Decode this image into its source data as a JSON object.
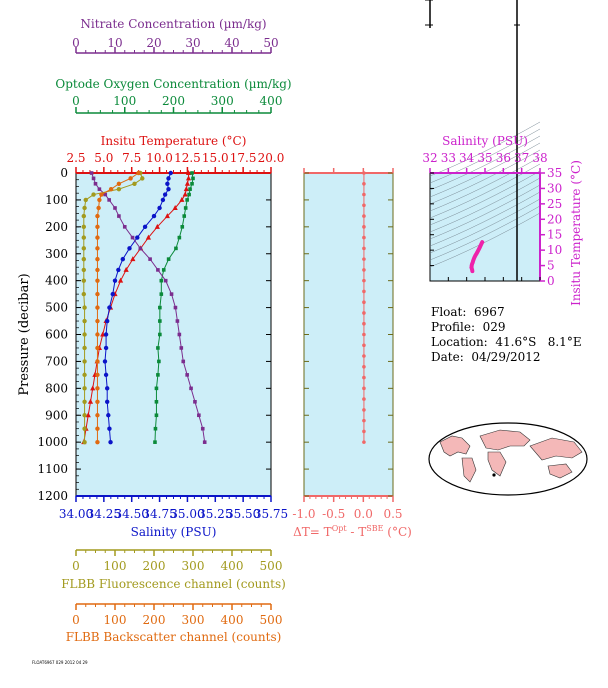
{
  "float_info": {
    "float": "Float:  6967",
    "profile": "Profile:  029",
    "location": "Location:  41.6°S   8.1°E",
    "date": "Date:  04/29/2012"
  },
  "footer_text": "FLOAT6967 029 2012 04 29",
  "colors": {
    "nitrate": "#7b2d8e",
    "oxygen": "#0b8a3a",
    "temperature": "#dd1111",
    "salinity": "#0b14c8",
    "fluorescence": "#a29a1e",
    "backscatter": "#e06a10",
    "delta_t": "#f06868",
    "plot_bg": "#cdeef8",
    "ts_bg": "#cdeef8",
    "ts_marker": "#ee22aa",
    "magenta_axis": "#cc22cc"
  },
  "chart_data": [
    {
      "type": "line",
      "id": "main_profile",
      "ylabel": "Pressure (decibar)",
      "ylim": [
        1200,
        0
      ],
      "y_ticks": [
        "0",
        "100",
        "200",
        "300",
        "400",
        "500",
        "600",
        "700",
        "800",
        "900",
        "1000",
        "1100",
        "1200"
      ],
      "axes": {
        "temperature": {
          "label": "Insitu Temperature (°C)",
          "range": [
            2.5,
            20.0
          ],
          "ticks": [
            "2.5",
            "5.0",
            "7.5",
            "10.0",
            "12.5",
            "15.0",
            "17.5",
            "20.0"
          ]
        },
        "oxygen": {
          "label": "Optode Oxygen Concentration (µm/kg)",
          "range": [
            0,
            400
          ],
          "ticks": [
            "0",
            "100",
            "200",
            "300",
            "400"
          ]
        },
        "nitrate": {
          "label": "Nitrate Concentration (µm/kg)",
          "range": [
            0,
            50
          ],
          "ticks": [
            "0",
            "10",
            "20",
            "30",
            "40",
            "50"
          ]
        },
        "salinity": {
          "label": "Salinity (PSU)",
          "range": [
            34.0,
            35.75
          ],
          "ticks": [
            "34.00",
            "34.25",
            "34.50",
            "34.75",
            "35.00",
            "35.25",
            "35.50",
            "35.75"
          ]
        },
        "fluorescence": {
          "label": "FLBB Fluorescence channel (counts)",
          "range": [
            0,
            500
          ],
          "ticks": [
            "0",
            "100",
            "200",
            "300",
            "400",
            "500"
          ]
        },
        "backscatter": {
          "label": "FLBB Backscatter channel (counts)",
          "range": [
            0,
            500
          ],
          "ticks": [
            "0",
            "100",
            "200",
            "300",
            "400",
            "500"
          ]
        }
      },
      "series": [
        {
          "key": "temperature",
          "pressure": [
            0,
            20,
            40,
            60,
            80,
            100,
            130,
            160,
            200,
            240,
            280,
            320,
            360,
            400,
            450,
            500,
            550,
            600,
            650,
            700,
            750,
            800,
            850,
            900,
            950,
            1000
          ],
          "values": [
            12.6,
            12.6,
            12.5,
            12.4,
            12.3,
            12.0,
            11.4,
            10.7,
            9.8,
            9.0,
            8.3,
            7.6,
            7.0,
            6.5,
            6.0,
            5.6,
            5.2,
            4.9,
            4.6,
            4.4,
            4.2,
            4.0,
            3.8,
            3.6,
            3.4,
            3.2
          ]
        },
        {
          "key": "salinity",
          "pressure": [
            0,
            20,
            40,
            60,
            80,
            100,
            130,
            160,
            200,
            240,
            280,
            320,
            360,
            400,
            450,
            500,
            550,
            600,
            650,
            700,
            750,
            800,
            850,
            900,
            950,
            1000
          ],
          "values": [
            34.85,
            34.83,
            34.82,
            34.83,
            34.8,
            34.78,
            34.75,
            34.7,
            34.62,
            34.55,
            34.48,
            34.42,
            34.38,
            34.35,
            34.33,
            34.3,
            34.28,
            34.27,
            34.27,
            34.26,
            34.27,
            34.28,
            34.28,
            34.29,
            34.3,
            34.31
          ]
        },
        {
          "key": "oxygen",
          "pressure": [
            0,
            20,
            40,
            60,
            80,
            100,
            130,
            160,
            200,
            240,
            280,
            320,
            360,
            400,
            450,
            500,
            550,
            600,
            650,
            700,
            750,
            800,
            850,
            900,
            950,
            1000
          ],
          "values": [
            238,
            240,
            238,
            234,
            232,
            228,
            225,
            222,
            218,
            212,
            205,
            190,
            180,
            175,
            175,
            172,
            172,
            172,
            168,
            170,
            168,
            165,
            165,
            165,
            163,
            162
          ]
        },
        {
          "key": "nitrate",
          "pressure": [
            0,
            20,
            40,
            60,
            80,
            100,
            130,
            160,
            200,
            240,
            280,
            320,
            360,
            400,
            450,
            500,
            550,
            600,
            650,
            700,
            750,
            800,
            850,
            900,
            950,
            1000
          ],
          "values": [
            4.0,
            4.5,
            5.0,
            6.0,
            7.5,
            8.5,
            10.0,
            11.0,
            12.5,
            14.5,
            16.5,
            19.0,
            21.0,
            23.0,
            24.5,
            25.5,
            26.0,
            26.5,
            27.0,
            27.5,
            28.5,
            29.5,
            30.5,
            31.5,
            32.5,
            33.0
          ]
        },
        {
          "key": "fluorescence",
          "pressure": [
            0,
            20,
            40,
            60,
            80,
            100,
            130,
            160,
            200,
            240,
            280,
            320,
            360,
            400,
            450,
            500,
            550,
            600,
            650,
            700,
            750,
            800,
            850,
            900,
            950,
            1000
          ],
          "values": [
            165,
            170,
            150,
            110,
            45,
            25,
            22,
            20,
            20,
            20,
            20,
            20,
            20,
            20,
            20,
            22,
            22,
            22,
            22,
            22,
            22,
            22,
            22,
            22,
            22,
            22
          ]
        },
        {
          "key": "backscatter",
          "pressure": [
            0,
            20,
            40,
            60,
            80,
            100,
            130,
            160,
            200,
            240,
            280,
            320,
            360,
            400,
            450,
            500,
            550,
            600,
            650,
            700,
            750,
            800,
            850,
            900,
            950,
            1000
          ],
          "values": [
            160,
            140,
            110,
            90,
            65,
            60,
            58,
            55,
            55,
            55,
            55,
            55,
            55,
            55,
            55,
            55,
            55,
            55,
            55,
            55,
            55,
            55,
            55,
            55,
            55,
            55
          ]
        }
      ]
    },
    {
      "type": "line",
      "id": "delta_t",
      "xlabel_main": "ΔT= T",
      "xlabel_sup1": "Opt",
      "xlabel_mid": " - T",
      "xlabel_sup2": "SBE",
      "xlabel_end": " (°C)",
      "xlim": [
        -1.0,
        0.5
      ],
      "x_ticks": [
        "-1.0",
        "-0.5",
        "0.0",
        "0.5"
      ],
      "pressure": [
        0,
        40,
        80,
        120,
        160,
        200,
        240,
        280,
        320,
        360,
        400,
        440,
        480,
        520,
        560,
        600,
        640,
        680,
        720,
        760,
        800,
        840,
        880,
        920,
        960,
        1000
      ],
      "values": [
        0.01,
        0.01,
        0.01,
        0.01,
        0.01,
        0.01,
        0.01,
        0.01,
        0.01,
        0.01,
        0.01,
        0.01,
        0.01,
        0.01,
        0.01,
        0.01,
        0.01,
        0.01,
        0.01,
        0.01,
        0.01,
        0.01,
        0.01,
        0.01,
        0.01,
        0.01
      ]
    },
    {
      "type": "scatter",
      "id": "ts_diagram",
      "xlabel": "Salinity (PSU)",
      "ylabel": "Insitu Temperature (°C)",
      "xlim": [
        32,
        38
      ],
      "ylim": [
        0,
        35
      ],
      "x_ticks": [
        "32",
        "33",
        "34",
        "35",
        "36",
        "37",
        "38"
      ],
      "y_ticks": [
        "0",
        "5",
        "10",
        "15",
        "20",
        "25",
        "30",
        "35"
      ],
      "points": [
        [
          34.85,
          12.6
        ],
        [
          34.8,
          12.0
        ],
        [
          34.7,
          10.7
        ],
        [
          34.62,
          9.8
        ],
        [
          34.55,
          9.0
        ],
        [
          34.48,
          8.3
        ],
        [
          34.42,
          7.6
        ],
        [
          34.38,
          7.0
        ],
        [
          34.35,
          6.5
        ],
        [
          34.33,
          6.0
        ],
        [
          34.3,
          5.6
        ],
        [
          34.28,
          5.2
        ],
        [
          34.27,
          4.9
        ],
        [
          34.27,
          4.6
        ],
        [
          34.26,
          4.4
        ],
        [
          34.28,
          4.0
        ],
        [
          34.3,
          3.6
        ],
        [
          34.31,
          3.2
        ]
      ]
    }
  ]
}
